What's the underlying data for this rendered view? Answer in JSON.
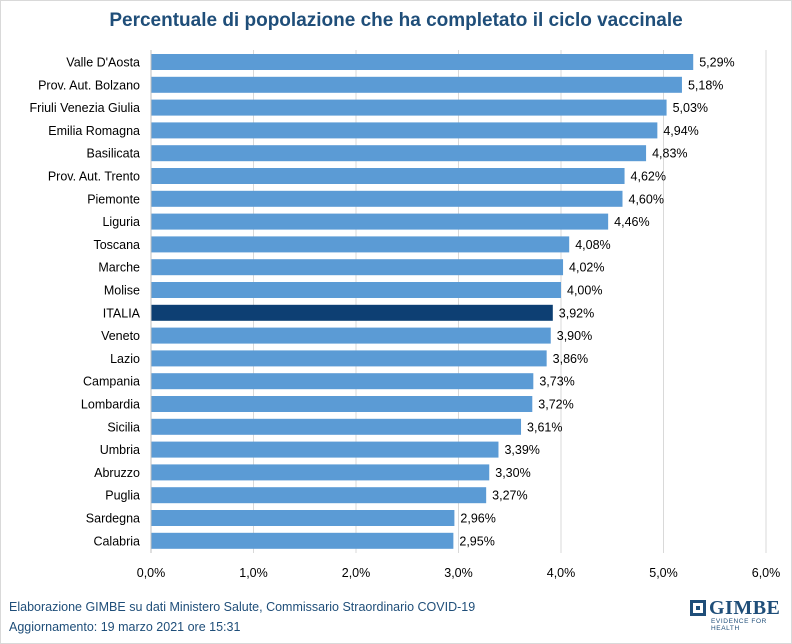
{
  "chart_data": {
    "type": "bar",
    "orientation": "horizontal",
    "title": "Percentuale di popolazione che ha completato il ciclo vaccinale",
    "categories": [
      "Valle D'Aosta",
      "Prov. Aut. Bolzano",
      "Friuli Venezia Giulia",
      "Emilia Romagna",
      "Basilicata",
      "Prov. Aut. Trento",
      "Piemonte",
      "Liguria",
      "Toscana",
      "Marche",
      "Molise",
      "ITALIA",
      "Veneto",
      "Lazio",
      "Campania",
      "Lombardia",
      "Sicilia",
      "Umbria",
      "Abruzzo",
      "Puglia",
      "Sardegna",
      "Calabria"
    ],
    "values": [
      5.29,
      5.18,
      5.03,
      4.94,
      4.83,
      4.62,
      4.6,
      4.46,
      4.08,
      4.02,
      4.0,
      3.92,
      3.9,
      3.86,
      3.73,
      3.72,
      3.61,
      3.39,
      3.3,
      3.27,
      2.96,
      2.95
    ],
    "value_labels": [
      "5,29%",
      "5,18%",
      "5,03%",
      "4,94%",
      "4,83%",
      "4,62%",
      "4,60%",
      "4,46%",
      "4,08%",
      "4,02%",
      "4,00%",
      "3,92%",
      "3,90%",
      "3,86%",
      "3,73%",
      "3,72%",
      "3,61%",
      "3,39%",
      "3,30%",
      "3,27%",
      "2,96%",
      "2,95%"
    ],
    "xlim": [
      0,
      6
    ],
    "x_ticks": [
      0,
      1,
      2,
      3,
      4,
      5,
      6
    ],
    "x_tick_labels": [
      "0,0%",
      "1,0%",
      "2,0%",
      "3,0%",
      "4,0%",
      "5,0%",
      "6,0%"
    ],
    "gridlines": "vertical",
    "highlight_category": "ITALIA",
    "colors": {
      "bar": "#5b9bd5",
      "highlight": "#0d3f73",
      "grid": "#d9d9d9",
      "text": "#000000"
    }
  },
  "footer": {
    "source": "Elaborazione GIMBE su dati Ministero Salute, Commissario Straordinario COVID-19",
    "updated": "Aggiornamento: 19 marzo 2021  ore 15:31"
  },
  "logo": {
    "name": "GIMBE",
    "tagline": "EVIDENCE FOR HEALTH"
  }
}
